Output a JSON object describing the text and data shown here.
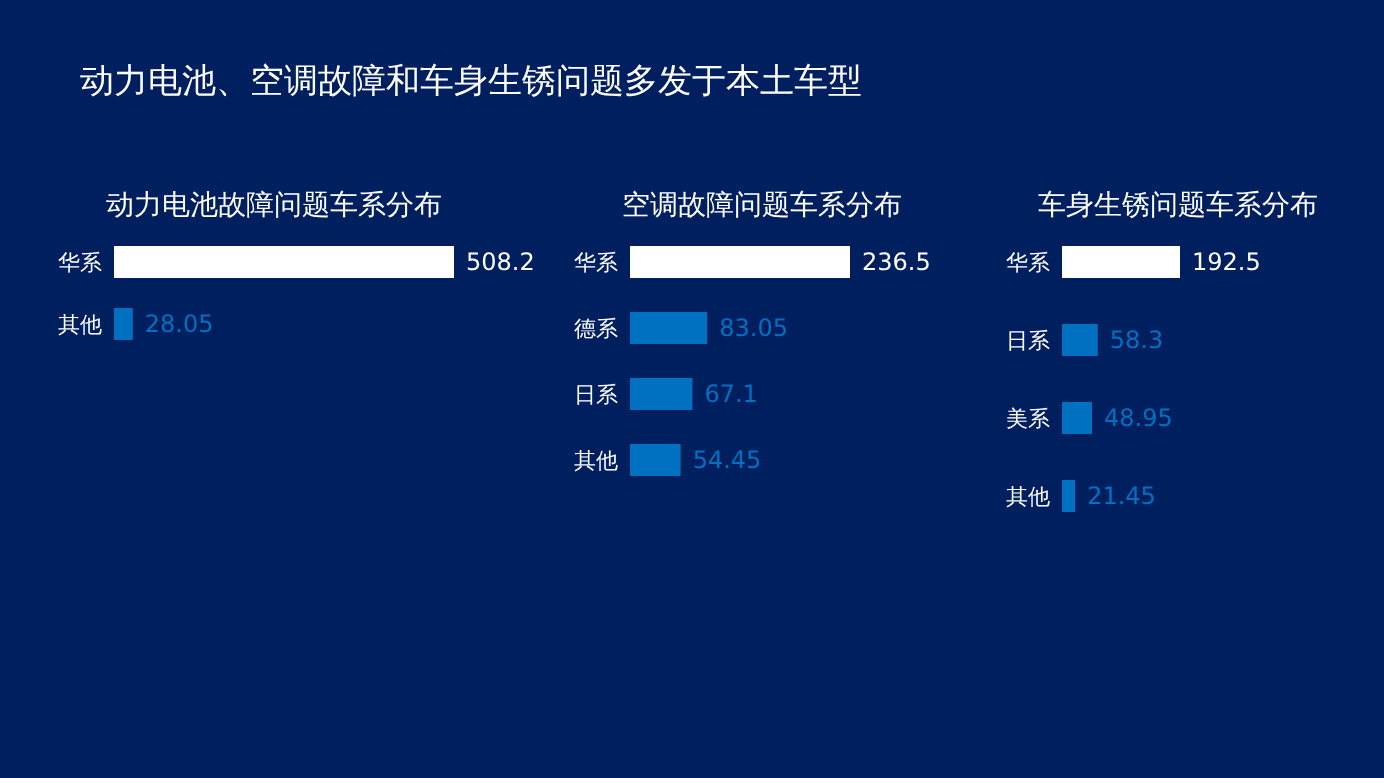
{
  "chart_data": [
    {
      "type": "other",
      "title": "动力电池、空调故障和车身生锈问题多发于本土车型"
    },
    {
      "type": "bar",
      "orientation": "horizontal",
      "title": "动力电池故障问题车系分布",
      "categories": [
        "华系",
        "其他"
      ],
      "values": [
        508.2,
        28.05
      ],
      "colors": [
        "#ffffff",
        "#0070c0"
      ],
      "data_labels": true
    },
    {
      "type": "bar",
      "orientation": "horizontal",
      "title": "空调故障问题车系分布",
      "categories": [
        "华系",
        "德系",
        "日系",
        "其他"
      ],
      "values": [
        236.5,
        83.05,
        67.1,
        54.45
      ],
      "colors": [
        "#ffffff",
        "#0070c0",
        "#0070c0",
        "#0070c0"
      ],
      "data_labels": true
    },
    {
      "type": "bar",
      "orientation": "horizontal",
      "title": "车身生锈问题车系分布",
      "categories": [
        "华系",
        "日系",
        "美系",
        "其他"
      ],
      "values": [
        192.5,
        58.3,
        48.95,
        21.45
      ],
      "colors": [
        "#ffffff",
        "#0070c0",
        "#0070c0",
        "#0070c0"
      ],
      "data_labels": true
    }
  ]
}
